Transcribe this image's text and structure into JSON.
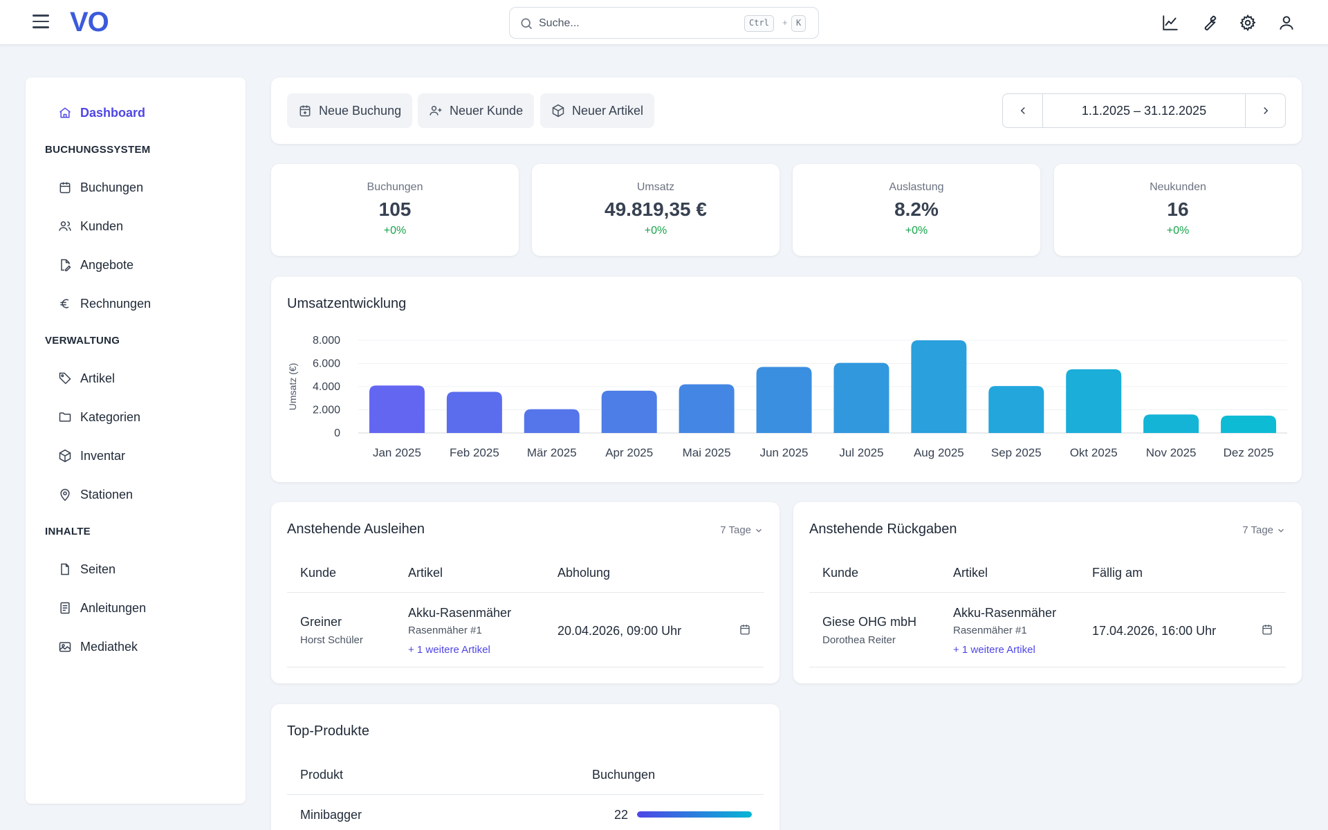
{
  "header": {
    "logo": "VO",
    "search_placeholder": "Suche...",
    "shortcut_key1": "Ctrl",
    "shortcut_plus": "+",
    "shortcut_key2": "K"
  },
  "sidebar": {
    "dashboard": "Dashboard",
    "sections": [
      {
        "title": "BUCHUNGSSYSTEM",
        "items": [
          "Buchungen",
          "Kunden",
          "Angebote",
          "Rechnungen"
        ]
      },
      {
        "title": "VERWALTUNG",
        "items": [
          "Artikel",
          "Kategorien",
          "Inventar",
          "Stationen"
        ]
      },
      {
        "title": "INHALTE",
        "items": [
          "Seiten",
          "Anleitungen",
          "Mediathek"
        ]
      }
    ]
  },
  "actions": {
    "new_booking": "Neue Buchung",
    "new_customer": "Neuer Kunde",
    "new_article": "Neuer Artikel",
    "date_range": "1.1.2025 – 31.12.2025"
  },
  "kpis": [
    {
      "label": "Buchungen",
      "value": "105",
      "delta": "+0%"
    },
    {
      "label": "Umsatz",
      "value": "49.819,35 €",
      "delta": "+0%"
    },
    {
      "label": "Auslastung",
      "value": "8.2%",
      "delta": "+0%"
    },
    {
      "label": "Neukunden",
      "value": "16",
      "delta": "+0%"
    }
  ],
  "chart_title": "Umsatzentwicklung",
  "chart_data": {
    "type": "bar",
    "title": "Umsatzentwicklung",
    "xlabel": "",
    "ylabel": "Umsatz (€)",
    "ylim": [
      0,
      8000
    ],
    "y_ticks": [
      "0",
      "2.000",
      "4.000",
      "6.000",
      "8.000"
    ],
    "categories": [
      "Jan 2025",
      "Feb 2025",
      "Mär 2025",
      "Apr 2025",
      "Mai 2025",
      "Jun 2025",
      "Jul 2025",
      "Aug 2025",
      "Sep 2025",
      "Okt 2025",
      "Nov 2025",
      "Dez 2025"
    ],
    "values": [
      4100,
      3550,
      2050,
      3650,
      4200,
      5700,
      6050,
      8000,
      4050,
      5500,
      1600,
      1500
    ],
    "grid": true,
    "legend": "none",
    "colors": [
      "#6366f1",
      "#5b6ded",
      "#5575ea",
      "#4d7de7",
      "#4486e3",
      "#3a8fe1",
      "#3198de",
      "#2aa0dd",
      "#22a6dc",
      "#1aaed9",
      "#13b4d6",
      "#0ebbd4"
    ]
  },
  "loans": {
    "title": "Anstehende Ausleihen",
    "period": "7 Tage",
    "headers": [
      "Kunde",
      "Artikel",
      "Abholung"
    ],
    "row": {
      "customer": "Greiner",
      "contact": "Horst Schüler",
      "article": "Akku-Rasenmäher",
      "article_sub": "Rasenmäher #1",
      "more": "+ 1 weitere Artikel",
      "date": "20.04.2026, 09:00 Uhr"
    }
  },
  "returns": {
    "title": "Anstehende Rückgaben",
    "period": "7 Tage",
    "headers": [
      "Kunde",
      "Artikel",
      "Fällig am"
    ],
    "row": {
      "customer": "Giese OHG mbH",
      "contact": "Dorothea Reiter",
      "article": "Akku-Rasenmäher",
      "article_sub": "Rasenmäher #1",
      "more": "+ 1 weitere Artikel",
      "date": "17.04.2026, 16:00 Uhr"
    }
  },
  "top_products": {
    "title": "Top-Produkte",
    "headers": [
      "Produkt",
      "Buchungen"
    ],
    "rows": [
      {
        "product": "Minibagger",
        "bookings": "22",
        "share": 1.0
      }
    ]
  }
}
